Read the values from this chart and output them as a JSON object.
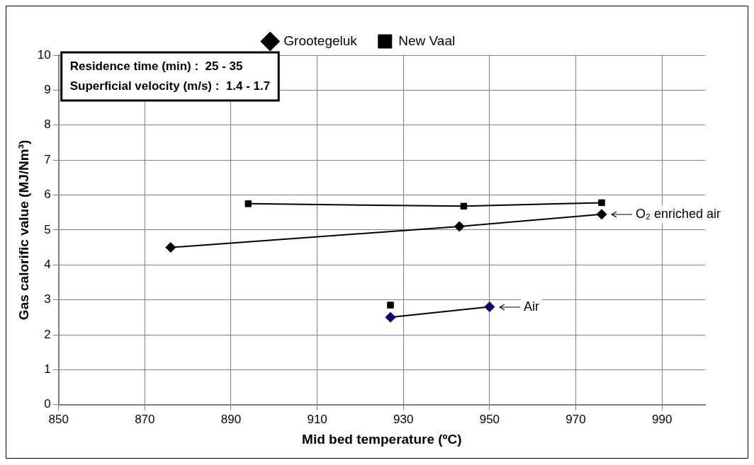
{
  "chart_data": {
    "type": "line",
    "xlabel": "Mid bed temperature (ºC)",
    "ylabel": "Gas calorific value (MJ/Nm³)",
    "xlim": [
      850,
      1000
    ],
    "xticks": [
      850,
      870,
      890,
      910,
      930,
      950,
      970,
      990
    ],
    "ylim": [
      0,
      10
    ],
    "yticks": [
      0,
      1,
      2,
      3,
      4,
      5,
      6,
      7,
      8,
      9,
      10
    ],
    "grid": true,
    "legend": "top",
    "line_style": "solid",
    "series": [
      {
        "name": "Grootegeluk",
        "color": "#000000",
        "marker": "diamond",
        "x": [
          876,
          943,
          976
        ],
        "values": [
          4.5,
          5.1,
          5.45
        ]
      },
      {
        "name": "New Vaal",
        "color": "#000000",
        "marker": "square",
        "x": [
          894,
          944,
          976
        ],
        "values": [
          5.75,
          5.68,
          5.78
        ]
      },
      {
        "color": "#000080",
        "marker": "diamond",
        "x": [
          927,
          950
        ],
        "values": [
          2.5,
          2.8
        ]
      },
      {
        "color": "#000000",
        "marker": "square",
        "x": [
          927
        ],
        "values": [
          2.85
        ]
      }
    ],
    "annotations": [
      "Residence time (min) :  25 - 35",
      "Superficial velocity (m/s) :  1.4 - 1.7",
      {
        "text": "O₂ enriched air",
        "x": 976,
        "y": 5.45
      },
      {
        "text": "Air",
        "x": 950,
        "y": 2.8
      }
    ]
  }
}
